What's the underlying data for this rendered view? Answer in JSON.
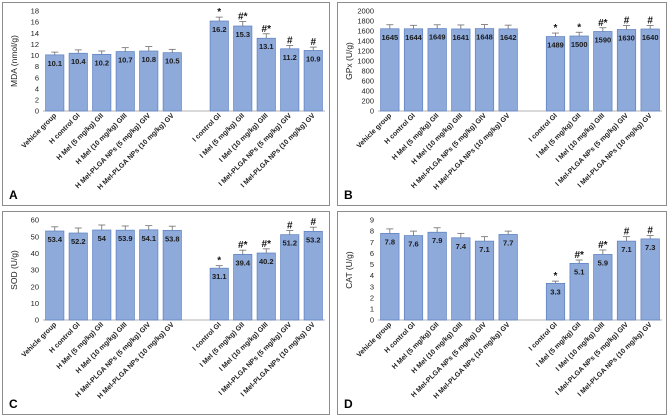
{
  "categories": [
    "Vehicle group",
    "H control GI",
    "H Mel (5 mg/kg) GII",
    "H Mel (10 mg/kg) GIII",
    "H Mel-PLGA NPs (5 mg/kg) GIV",
    "H Mel-PLGA NPs (10 mg/kg) GV",
    "",
    "I control GI",
    "I Mel (5 mg/kg) GII",
    "I Mel (10 mg/kg) GIII",
    "I Mel-PLGA NPs (5 mg/kg) GIV",
    "I Mel-PLGA NPs (10 mg/kg) GV"
  ],
  "colors": {
    "bar": "#8eaadb",
    "bar_edge": "#5b7fbf",
    "border": "#8c8c8c"
  },
  "chart_data": [
    {
      "type": "bar",
      "panel": "A",
      "ylabel": "MDA (nmol/g)",
      "ylim": [
        0,
        18
      ],
      "yticks": [
        "0",
        "2",
        "4",
        "6",
        "8",
        "10",
        "12",
        "14",
        "16",
        "18"
      ],
      "values": [
        10.1,
        10.4,
        10.2,
        10.7,
        10.8,
        10.5,
        null,
        16.2,
        15.3,
        13.1,
        11.2,
        10.9
      ],
      "labels": [
        "10.1",
        "10.4",
        "10.2",
        "10.7",
        "10.8",
        "10.5",
        "",
        "16.2",
        "15.3",
        "13.1",
        "11.2",
        "10.9"
      ],
      "errors": [
        0.5,
        0.6,
        0.6,
        0.7,
        0.8,
        0.6,
        0,
        0.7,
        0.8,
        0.8,
        0.6,
        0.6
      ],
      "significance": [
        "",
        "",
        "",
        "",
        "",
        "",
        "",
        "*",
        "#*",
        "#*",
        "#",
        "#"
      ]
    },
    {
      "type": "bar",
      "panel": "B",
      "ylabel": "GPx (U/g)",
      "ylim": [
        0,
        2000
      ],
      "yticks": [
        "0",
        "200",
        "400",
        "600",
        "800",
        "1000",
        "1200",
        "1400",
        "1600",
        "1800",
        "2000"
      ],
      "values": [
        1645,
        1644,
        1649,
        1641,
        1648,
        1642,
        null,
        1489,
        1500,
        1590,
        1630,
        1640
      ],
      "labels": [
        "1645",
        "1644",
        "1649",
        "1641",
        "1648",
        "1642",
        "",
        "1489",
        "1500",
        "1590",
        "1630",
        "1640"
      ],
      "errors": [
        80,
        70,
        75,
        80,
        80,
        75,
        0,
        70,
        75,
        75,
        80,
        70
      ],
      "significance": [
        "",
        "",
        "",
        "",
        "",
        "",
        "",
        "*",
        "*",
        "#*",
        "#",
        "#"
      ]
    },
    {
      "type": "bar",
      "panel": "C",
      "ylabel": "SOD (U/g)",
      "ylim": [
        0,
        60
      ],
      "yticks": [
        "0",
        "10",
        "20",
        "30",
        "40",
        "50",
        "60"
      ],
      "values": [
        53.4,
        52.2,
        54,
        53.9,
        54.1,
        53.8,
        null,
        31.1,
        39.4,
        40.2,
        51.2,
        53.2
      ],
      "labels": [
        "53.4",
        "52.2",
        "54",
        "53.9",
        "54.1",
        "53.8",
        "",
        "31.1",
        "39.4",
        "40.2",
        "51.2",
        "53.2"
      ],
      "errors": [
        2.5,
        3,
        3,
        2.5,
        2.5,
        2.5,
        0,
        1.5,
        2.5,
        2.5,
        2.5,
        2.5
      ],
      "significance": [
        "",
        "",
        "",
        "",
        "",
        "",
        "",
        "*",
        "#*",
        "#*",
        "#",
        "#"
      ]
    },
    {
      "type": "bar",
      "panel": "D",
      "ylabel": "CAT (U/g)",
      "ylim": [
        0,
        9
      ],
      "yticks": [
        "0",
        "1",
        "2",
        "3",
        "4",
        "5",
        "6",
        "7",
        "8",
        "9"
      ],
      "values": [
        7.8,
        7.6,
        7.9,
        7.4,
        7.1,
        7.7,
        null,
        3.3,
        5.1,
        5.9,
        7.1,
        7.3
      ],
      "labels": [
        "7.8",
        "7.6",
        "7.9",
        "7.4",
        "7.1",
        "7.7",
        "",
        "3.3",
        "5.1",
        "5.9",
        "7.1",
        "7.3"
      ],
      "errors": [
        0.4,
        0.4,
        0.4,
        0.4,
        0.4,
        0.3,
        0,
        0.2,
        0.3,
        0.4,
        0.4,
        0.3
      ],
      "significance": [
        "",
        "",
        "",
        "",
        "",
        "",
        "",
        "*",
        "#*",
        "#*",
        "#",
        "#"
      ]
    }
  ]
}
